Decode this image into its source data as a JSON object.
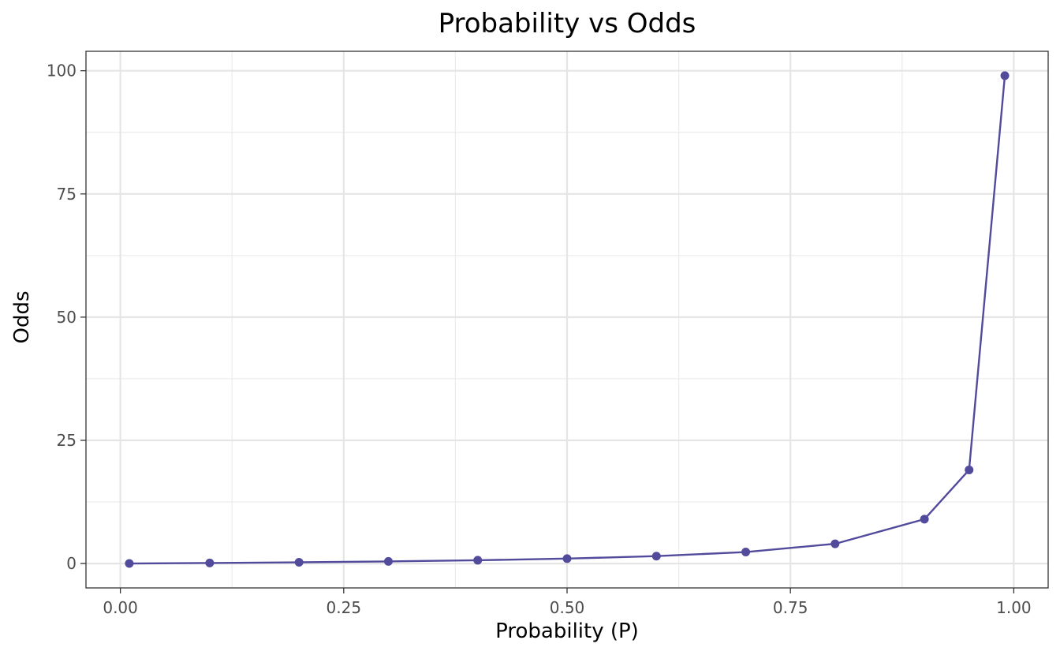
{
  "chart_data": {
    "type": "line",
    "title": "Probability vs Odds",
    "xlabel": "Probability (P)",
    "ylabel": "Odds",
    "xlim": [
      -0.0385,
      1.0385
    ],
    "ylim": [
      -4.95,
      103.95
    ],
    "x_ticks": [
      0.0,
      0.25,
      0.5,
      0.75,
      1.0
    ],
    "x_tick_labels": [
      "0.00",
      "0.25",
      "0.50",
      "0.75",
      "1.00"
    ],
    "y_ticks": [
      0,
      25,
      50,
      75,
      100
    ],
    "y_tick_labels": [
      "0",
      "25",
      "50",
      "75",
      "100"
    ],
    "grid": true,
    "legend": "none",
    "series": [
      {
        "color": "#524b9b",
        "x": [
          0.01,
          0.1,
          0.2,
          0.3,
          0.4,
          0.5,
          0.6,
          0.7,
          0.8,
          0.9,
          0.95,
          0.99
        ],
        "y": [
          0.0101,
          0.111,
          0.25,
          0.429,
          0.667,
          1.0,
          1.5,
          2.33,
          4.0,
          9.0,
          19.0,
          99.0
        ]
      }
    ]
  }
}
